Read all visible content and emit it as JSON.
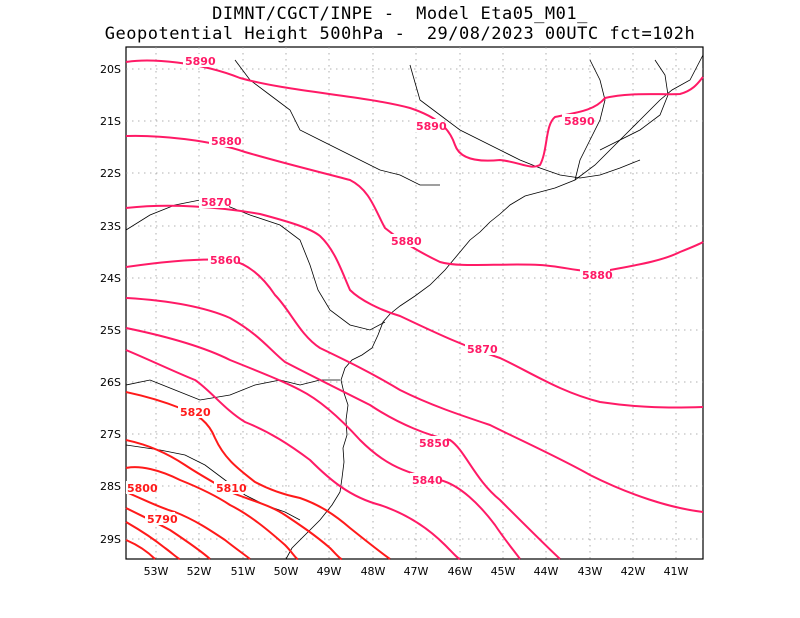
{
  "title": {
    "line1": "DIMNT/CGCT/INPE -  Model Eta05_M01_",
    "line2": "Geopotential Height 500hPa -  29/08/2023 00UTC fct=102h"
  },
  "axes": {
    "lat_ticks": [
      "20S",
      "21S",
      "22S",
      "23S",
      "24S",
      "25S",
      "26S",
      "27S",
      "28S",
      "29S"
    ],
    "lon_ticks": [
      "53W",
      "52W",
      "51W",
      "50W",
      "49W",
      "48W",
      "47W",
      "46W",
      "45W",
      "44W",
      "43W",
      "42W",
      "41W"
    ]
  },
  "contour_labels": [
    "5890",
    "5890",
    "5890",
    "5880",
    "5880",
    "5880",
    "5870",
    "5870",
    "5860",
    "5850",
    "5840",
    "5820",
    "5810",
    "5800",
    "5790"
  ],
  "colors": {
    "magenta": "#ff1a66",
    "red": "#ff1a1a",
    "coast": "#000000",
    "grid": "#999999"
  }
}
